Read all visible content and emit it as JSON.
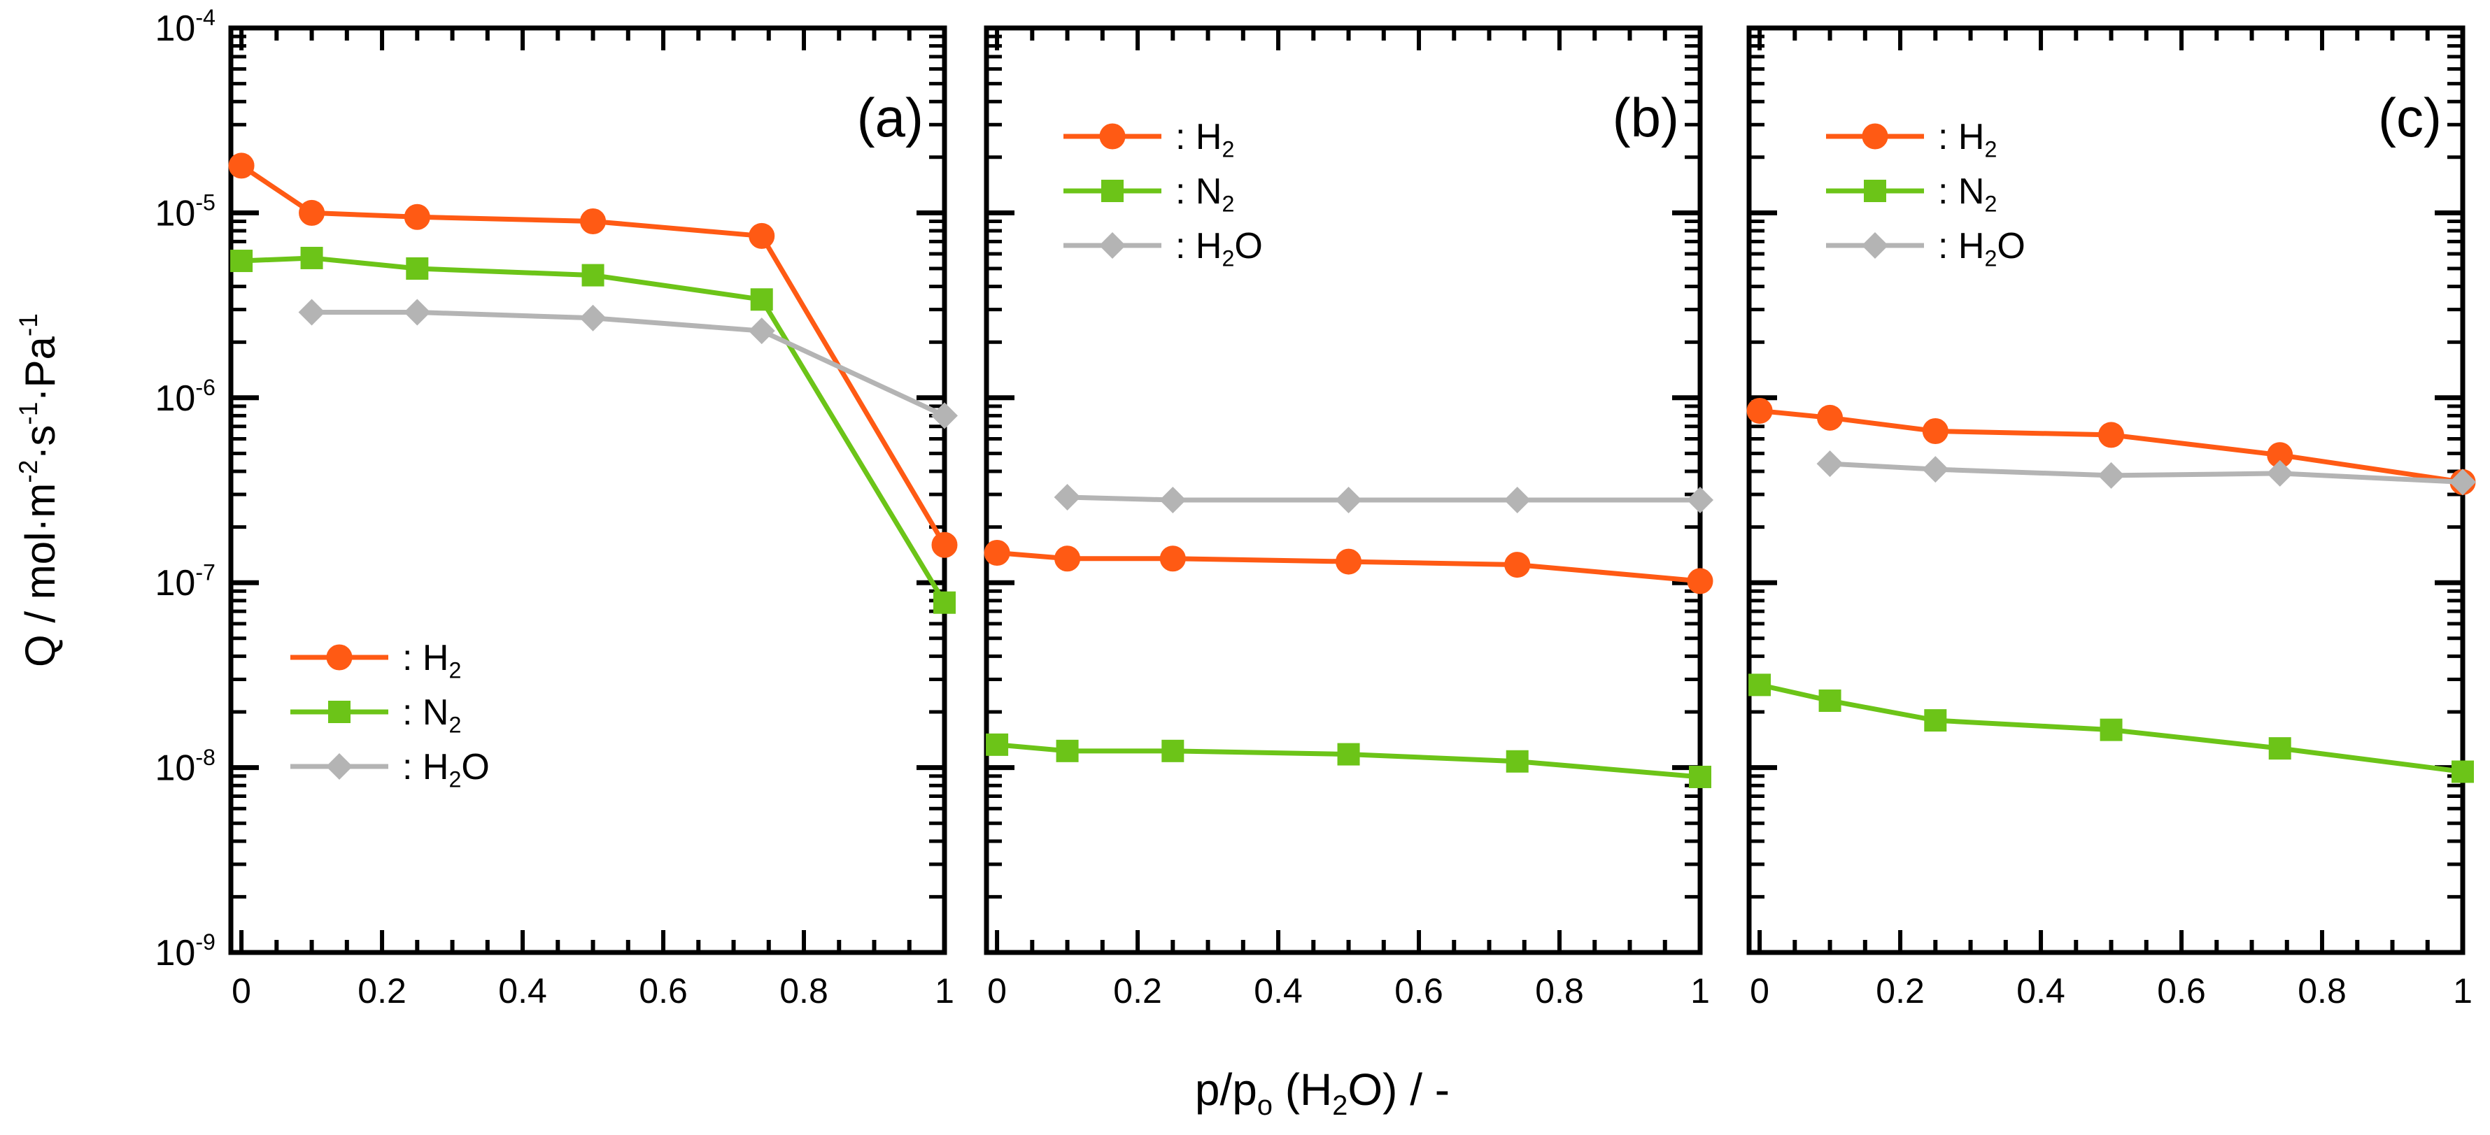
{
  "chart_data": {
    "type": "line",
    "y_scale": "log",
    "ylim": [
      1e-09,
      0.0001
    ],
    "xlim": [
      0,
      1
    ],
    "ylabel": "Q / mol·m⁻²·s⁻¹·Pa⁻¹",
    "ylabel_parts": {
      "base": "Q / mol·m",
      "exp1": "-2",
      "mid1": "·s",
      "exp2": "-1",
      "mid2": "·Pa",
      "exp3": "-1"
    },
    "xlabel": "p/pₒ (H₂O) / -",
    "xlabel_parts": {
      "p1": "p/p",
      "sub": "o",
      "p2": " (H",
      "sub2": "2",
      "p3": "O) / -"
    },
    "x_ticks": [
      {
        "value": 0,
        "label": "0"
      },
      {
        "value": 0.2,
        "label": "0.2"
      },
      {
        "value": 0.4,
        "label": "0.4"
      },
      {
        "value": 0.6,
        "label": "0.6"
      },
      {
        "value": 0.8,
        "label": "0.8"
      },
      {
        "value": 1,
        "label": "1"
      }
    ],
    "y_ticks": [
      {
        "value": 0.0001,
        "base": "10",
        "exp": "-4"
      },
      {
        "value": 1e-05,
        "base": "10",
        "exp": "-5"
      },
      {
        "value": 1e-06,
        "base": "10",
        "exp": "-6"
      },
      {
        "value": 1e-07,
        "base": "10",
        "exp": "-7"
      },
      {
        "value": 1e-08,
        "base": "10",
        "exp": "-8"
      },
      {
        "value": 1e-09,
        "base": "10",
        "exp": "-9"
      }
    ],
    "legend_entries": [
      {
        "key": "H2",
        "prefix": ": H",
        "sub": "2",
        "suffix": ""
      },
      {
        "key": "N2",
        "prefix": ": N",
        "sub": "2",
        "suffix": ""
      },
      {
        "key": "H2O",
        "prefix": ": H",
        "sub": "2",
        "suffix": "O"
      }
    ],
    "series_styles": {
      "H2": {
        "color": "#ff5a14",
        "marker": "circle"
      },
      "N2": {
        "color": "#6cc418",
        "marker": "square"
      },
      "H2O": {
        "color": "#b4b4b4",
        "marker": "diamond"
      }
    },
    "panels": [
      {
        "label": "(a)",
        "legend_position": "bottom-left",
        "series": [
          {
            "name": "H2",
            "x": [
              0,
              0.1,
              0.25,
              0.5,
              0.74,
              1.0
            ],
            "values": [
              1.8e-05,
              1e-05,
              9.5e-06,
              9e-06,
              7.5e-06,
              1.6e-07
            ]
          },
          {
            "name": "N2",
            "x": [
              0,
              0.1,
              0.25,
              0.5,
              0.74,
              1.0
            ],
            "values": [
              5.5e-06,
              5.7e-06,
              5e-06,
              4.6e-06,
              3.4e-06,
              7.8e-08
            ]
          },
          {
            "name": "H2O",
            "x": [
              0.1,
              0.25,
              0.5,
              0.74,
              1.0
            ],
            "values": [
              2.9e-06,
              2.9e-06,
              2.7e-06,
              2.3e-06,
              8e-07
            ]
          }
        ]
      },
      {
        "label": "(b)",
        "legend_position": "top-left",
        "series": [
          {
            "name": "H2",
            "x": [
              0,
              0.1,
              0.25,
              0.5,
              0.74,
              1.0
            ],
            "values": [
              1.45e-07,
              1.35e-07,
              1.35e-07,
              1.3e-07,
              1.25e-07,
              1.02e-07
            ]
          },
          {
            "name": "N2",
            "x": [
              0,
              0.1,
              0.25,
              0.5,
              0.74,
              1.0
            ],
            "values": [
              1.33e-08,
              1.23e-08,
              1.23e-08,
              1.18e-08,
              1.08e-08,
              8.9e-09
            ]
          },
          {
            "name": "H2O",
            "x": [
              0.1,
              0.25,
              0.5,
              0.74,
              1.0
            ],
            "values": [
              2.9e-07,
              2.8e-07,
              2.8e-07,
              2.8e-07,
              2.8e-07
            ]
          }
        ]
      },
      {
        "label": "(c)",
        "legend_position": "top-left",
        "series": [
          {
            "name": "H2",
            "x": [
              0,
              0.1,
              0.25,
              0.5,
              0.74,
              1.0
            ],
            "values": [
              8.5e-07,
              7.8e-07,
              6.6e-07,
              6.3e-07,
              4.9e-07,
              3.5e-07
            ]
          },
          {
            "name": "N2",
            "x": [
              0,
              0.1,
              0.25,
              0.5,
              0.74,
              1.0
            ],
            "values": [
              2.8e-08,
              2.3e-08,
              1.8e-08,
              1.6e-08,
              1.27e-08,
              9.5e-09
            ]
          },
          {
            "name": "H2O",
            "x": [
              0.1,
              0.25,
              0.5,
              0.74,
              1.0
            ],
            "values": [
              4.4e-07,
              4.1e-07,
              3.8e-07,
              3.9e-07,
              3.5e-07
            ]
          }
        ]
      }
    ]
  }
}
